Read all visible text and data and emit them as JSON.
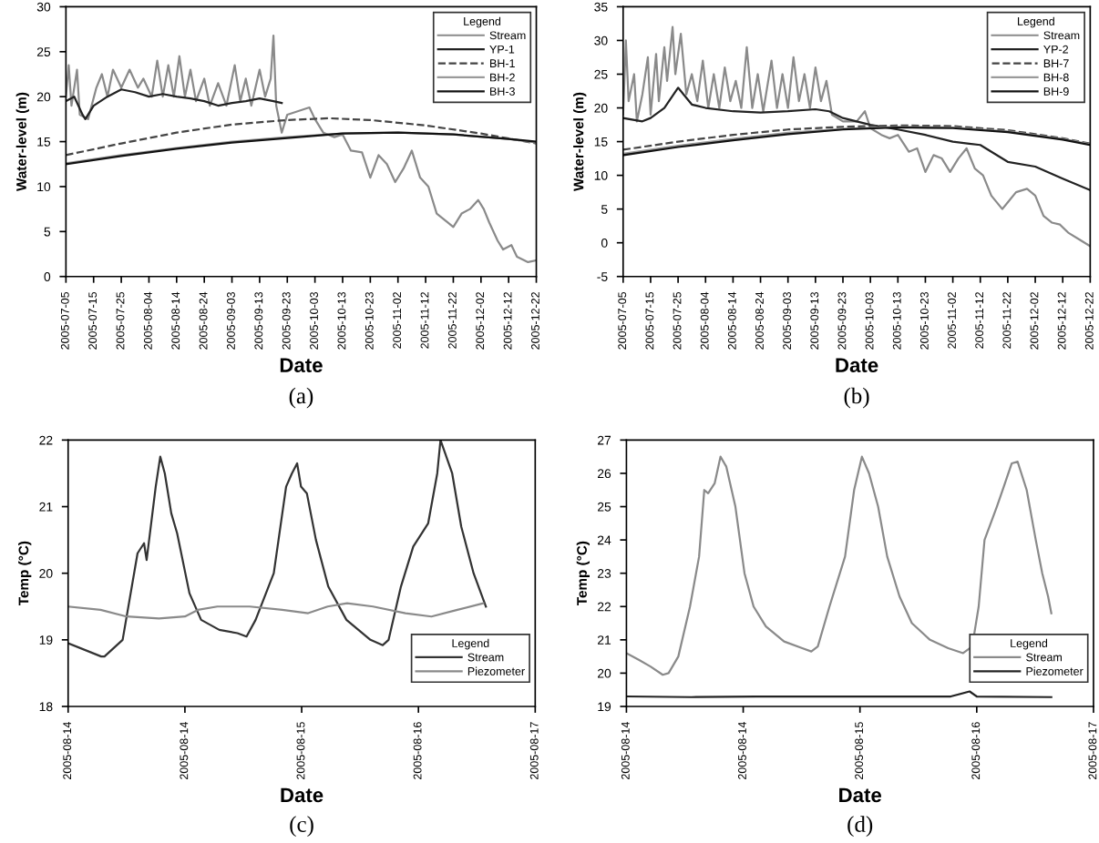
{
  "chart_data": [
    {
      "type": "line",
      "xlabel": "Date",
      "ylabel": "Water-level (m)",
      "annotations": [
        "(a)"
      ],
      "legend_title": "Legend",
      "legend": "top right",
      "line_style": "solid",
      "xlim": [
        "2005-07-05",
        "2005-12-22"
      ],
      "xticks": [
        "2005-07-05",
        "2005-07-15",
        "2005-07-25",
        "2005-08-04",
        "2005-08-14",
        "2005-08-24",
        "2005-09-03",
        "2005-09-13",
        "2005-09-23",
        "2005-10-03",
        "2005-10-13",
        "2005-10-23",
        "2005-11-02",
        "2005-11-12",
        "2005-11-22",
        "2005-12-02",
        "2005-12-12",
        "2005-12-22"
      ],
      "ylim": [
        0,
        30
      ],
      "yticks": [
        0,
        5,
        10,
        15,
        20,
        25,
        30
      ],
      "series": [
        {
          "name": "Stream",
          "color": "#8a8a8a",
          "x": [
            "2005-07-05",
            "2005-07-06",
            "2005-07-07",
            "2005-07-09",
            "2005-07-10",
            "2005-07-13",
            "2005-07-16",
            "2005-07-18",
            "2005-07-20",
            "2005-07-22",
            "2005-07-25",
            "2005-07-28",
            "2005-07-31",
            "2005-08-02",
            "2005-08-05",
            "2005-08-07",
            "2005-08-09",
            "2005-08-11",
            "2005-08-13",
            "2005-08-15",
            "2005-08-17",
            "2005-08-19",
            "2005-08-21",
            "2005-08-24",
            "2005-08-26",
            "2005-08-29",
            "2005-09-01",
            "2005-09-04",
            "2005-09-06",
            "2005-09-08",
            "2005-09-10",
            "2005-09-13",
            "2005-09-15",
            "2005-09-17",
            "2005-09-18",
            "2005-09-19",
            "2005-09-21",
            "2005-09-23",
            "2005-09-28",
            "2005-10-01",
            "2005-10-03",
            "2005-10-06",
            "2005-10-10",
            "2005-10-13",
            "2005-10-16",
            "2005-10-20",
            "2005-10-23",
            "2005-10-26",
            "2005-10-29",
            "2005-11-01",
            "2005-11-04",
            "2005-11-07",
            "2005-11-10",
            "2005-11-13",
            "2005-11-16",
            "2005-11-20",
            "2005-11-22",
            "2005-11-25",
            "2005-11-28",
            "2005-12-01",
            "2005-12-03",
            "2005-12-05",
            "2005-12-08",
            "2005-12-10",
            "2005-12-13",
            "2005-12-15",
            "2005-12-19",
            "2005-12-22"
          ],
          "values": [
            20,
            23.5,
            19,
            23,
            18,
            17.5,
            21,
            22.5,
            20,
            23,
            21,
            23,
            21,
            22,
            20,
            24,
            20,
            23.5,
            20,
            24.5,
            20,
            23,
            19.5,
            22,
            19,
            21.5,
            19,
            23.5,
            19.5,
            22,
            19,
            23,
            20,
            22,
            26.8,
            19,
            16,
            18,
            18.5,
            18.8,
            17.5,
            16,
            15.5,
            15.8,
            14,
            13.8,
            11,
            13.5,
            12.5,
            10.5,
            12,
            14,
            11,
            10,
            7,
            6,
            5.5,
            7,
            7.5,
            8.5,
            7.5,
            6,
            4,
            3,
            3.5,
            2.2,
            1.6,
            1.8
          ]
        },
        {
          "name": "YP-1",
          "color": "#222222",
          "x": [
            "2005-07-05",
            "2005-07-08",
            "2005-07-11",
            "2005-07-12",
            "2005-07-15",
            "2005-07-20",
            "2005-07-25",
            "2005-07-30",
            "2005-08-04",
            "2005-08-09",
            "2005-08-14",
            "2005-08-19",
            "2005-08-24",
            "2005-08-29",
            "2005-09-03",
            "2005-09-08",
            "2005-09-13",
            "2005-09-18",
            "2005-09-21"
          ],
          "values": [
            19.5,
            20,
            18,
            17.5,
            19,
            20,
            20.8,
            20.5,
            20,
            20.3,
            20,
            19.8,
            19.5,
            19,
            19.3,
            19.5,
            19.8,
            19.5,
            19.3
          ]
        },
        {
          "name": "BH-1",
          "color": "#444444",
          "line_style": "dashed",
          "x": [
            "2005-07-05",
            "2005-07-25",
            "2005-08-14",
            "2005-09-03",
            "2005-09-23",
            "2005-10-08",
            "2005-10-23",
            "2005-11-12",
            "2005-12-02",
            "2005-12-22"
          ],
          "values": [
            13.5,
            14.8,
            16,
            16.9,
            17.4,
            17.6,
            17.4,
            16.8,
            15.9,
            14.8
          ]
        },
        {
          "name": "BH-2",
          "color": "#9a9a9a",
          "x": [
            "2005-07-05",
            "2005-07-25",
            "2005-08-14",
            "2005-09-03",
            "2005-09-23",
            "2005-10-13",
            "2005-11-02",
            "2005-11-22",
            "2005-12-12",
            "2005-12-22"
          ],
          "values": [
            12.6,
            13.5,
            14.3,
            15,
            15.5,
            15.9,
            16,
            15.8,
            15.3,
            14.9
          ]
        },
        {
          "name": "BH-3",
          "color": "#111111",
          "x": [
            "2005-07-05",
            "2005-07-25",
            "2005-08-14",
            "2005-09-03",
            "2005-09-23",
            "2005-10-13",
            "2005-11-02",
            "2005-11-22",
            "2005-12-12",
            "2005-12-22"
          ],
          "values": [
            12.5,
            13.4,
            14.2,
            14.9,
            15.4,
            15.9,
            16,
            15.8,
            15.3,
            15
          ]
        }
      ]
    },
    {
      "type": "line",
      "xlabel": "Date",
      "ylabel": "Water-level (m)",
      "annotations": [
        "(b)"
      ],
      "legend_title": "Legend",
      "legend": "top right",
      "line_style": "solid",
      "xlim": [
        "2005-07-05",
        "2005-12-22"
      ],
      "xticks": [
        "2005-07-05",
        "2005-07-15",
        "2005-07-25",
        "2005-08-04",
        "2005-08-14",
        "2005-08-24",
        "2005-09-03",
        "2005-09-13",
        "2005-09-23",
        "2005-10-03",
        "2005-10-13",
        "2005-10-23",
        "2005-11-02",
        "2005-11-12",
        "2005-11-22",
        "2005-12-02",
        "2005-12-12",
        "2005-12-22"
      ],
      "ylim": [
        -5,
        35
      ],
      "yticks": [
        -5,
        0,
        5,
        10,
        15,
        20,
        25,
        30,
        35
      ],
      "series": [
        {
          "name": "Stream",
          "color": "#8a8a8a",
          "x": [
            "2005-07-05",
            "2005-07-06",
            "2005-07-07",
            "2005-07-09",
            "2005-07-10",
            "2005-07-12",
            "2005-07-14",
            "2005-07-15",
            "2005-07-17",
            "2005-07-18",
            "2005-07-20",
            "2005-07-21",
            "2005-07-23",
            "2005-07-24",
            "2005-07-26",
            "2005-07-28",
            "2005-07-30",
            "2005-08-01",
            "2005-08-03",
            "2005-08-05",
            "2005-08-07",
            "2005-08-09",
            "2005-08-11",
            "2005-08-13",
            "2005-08-15",
            "2005-08-17",
            "2005-08-19",
            "2005-08-21",
            "2005-08-23",
            "2005-08-25",
            "2005-08-28",
            "2005-08-30",
            "2005-09-01",
            "2005-09-03",
            "2005-09-05",
            "2005-09-07",
            "2005-09-09",
            "2005-09-11",
            "2005-09-13",
            "2005-09-15",
            "2005-09-17",
            "2005-09-19",
            "2005-09-23",
            "2005-09-28",
            "2005-10-01",
            "2005-10-03",
            "2005-10-07",
            "2005-10-10",
            "2005-10-13",
            "2005-10-17",
            "2005-10-20",
            "2005-10-23",
            "2005-10-26",
            "2005-10-29",
            "2005-11-01",
            "2005-11-04",
            "2005-11-07",
            "2005-11-10",
            "2005-11-13",
            "2005-11-16",
            "2005-11-20",
            "2005-11-22",
            "2005-11-25",
            "2005-11-29",
            "2005-12-02",
            "2005-12-05",
            "2005-12-08",
            "2005-12-11",
            "2005-12-14",
            "2005-12-18",
            "2005-12-22"
          ],
          "values": [
            19,
            30,
            21,
            25,
            18,
            22,
            27.5,
            19,
            28,
            21,
            29,
            24,
            32,
            25,
            31,
            22,
            25,
            21,
            27,
            20,
            25,
            20,
            26,
            21,
            24,
            20,
            29,
            20,
            25,
            19.5,
            27,
            20,
            25,
            20,
            27.5,
            21,
            25,
            20,
            26,
            21,
            24,
            19,
            18,
            18,
            19.5,
            17,
            16,
            15.5,
            16,
            13.5,
            14,
            10.5,
            13,
            12.5,
            10.5,
            12.5,
            14,
            11,
            10,
            7,
            5,
            6,
            7.5,
            8,
            7,
            4,
            3,
            2.7,
            1.5,
            0.5,
            -0.5
          ]
        },
        {
          "name": "YP-2",
          "color": "#222222",
          "x": [
            "2005-07-05",
            "2005-07-12",
            "2005-07-15",
            "2005-07-20",
            "2005-07-25",
            "2005-07-27",
            "2005-07-30",
            "2005-08-04",
            "2005-08-14",
            "2005-08-24",
            "2005-09-03",
            "2005-09-13",
            "2005-09-18",
            "2005-09-23",
            "2005-10-03",
            "2005-10-13",
            "2005-10-23",
            "2005-11-02",
            "2005-11-08",
            "2005-11-12",
            "2005-11-22",
            "2005-12-02",
            "2005-12-12",
            "2005-12-22"
          ],
          "values": [
            18.5,
            18,
            18.5,
            20,
            23,
            22,
            20.5,
            20,
            19.5,
            19.3,
            19.5,
            19.8,
            19.5,
            18.5,
            17.5,
            16.8,
            16,
            15,
            14.7,
            14.5,
            12,
            11.3,
            9.5,
            7.8
          ]
        },
        {
          "name": "BH-7",
          "color": "#444444",
          "line_style": "dashed",
          "x": [
            "2005-07-05",
            "2005-07-25",
            "2005-08-14",
            "2005-09-03",
            "2005-09-23",
            "2005-10-13",
            "2005-11-02",
            "2005-11-22",
            "2005-12-12",
            "2005-12-22"
          ],
          "values": [
            13.8,
            15,
            16,
            16.8,
            17.2,
            17.4,
            17.3,
            16.7,
            15.5,
            14.7
          ]
        },
        {
          "name": "BH-8",
          "color": "#9a9a9a",
          "x": [
            "2005-07-05",
            "2005-07-25",
            "2005-08-14",
            "2005-09-03",
            "2005-09-23",
            "2005-10-13",
            "2005-11-02",
            "2005-11-22",
            "2005-12-12",
            "2005-12-22"
          ],
          "values": [
            13.2,
            14.4,
            15.4,
            16.3,
            16.9,
            17.2,
            17.1,
            16.5,
            15.4,
            14.6
          ]
        },
        {
          "name": "BH-9",
          "color": "#111111",
          "x": [
            "2005-07-05",
            "2005-07-25",
            "2005-08-14",
            "2005-09-03",
            "2005-09-23",
            "2005-10-13",
            "2005-11-02",
            "2005-11-22",
            "2005-12-12",
            "2005-12-22"
          ],
          "values": [
            13,
            14.2,
            15.2,
            16.1,
            16.8,
            17.1,
            17,
            16.4,
            15.3,
            14.5
          ]
        }
      ]
    },
    {
      "type": "line",
      "xlabel": "Date",
      "ylabel": "Temp (°C)",
      "annotations": [
        "(c)"
      ],
      "legend_title": "Legend",
      "legend": "bottom right",
      "line_style": "solid",
      "xlim": [
        "2005-08-14T00:00",
        "2005-08-17T00:00"
      ],
      "xticks": [
        {
          "value": "2005-08-14T00:00",
          "label": "2005-08-14"
        },
        {
          "value": "2005-08-14T18:00",
          "label": "2005-08-14"
        },
        {
          "value": "2005-08-15T12:00",
          "label": "2005-08-15"
        },
        {
          "value": "2005-08-16T06:00",
          "label": "2005-08-16"
        },
        {
          "value": "2005-08-17T00:00",
          "label": "2005-08-17"
        }
      ],
      "ylim": [
        18,
        22
      ],
      "yticks": [
        18,
        19,
        20,
        21,
        22
      ],
      "series": [
        {
          "name": "Stream",
          "color": "#333333",
          "x": [
            "2005-08-14T00:00",
            "2005-08-14T05:06",
            "2005-08-14T05:36",
            "2005-08-14T08:24",
            "2005-08-14T10:42",
            "2005-08-14T11:42",
            "2005-08-14T12:06",
            "2005-08-14T13:30",
            "2005-08-14T14:12",
            "2005-08-14T14:54",
            "2005-08-14T15:54",
            "2005-08-14T16:48",
            "2005-08-14T18:42",
            "2005-08-14T20:30",
            "2005-08-14T23:18",
            "2005-08-15T02:06",
            "2005-08-15T03:30",
            "2005-08-15T04:54",
            "2005-08-15T07:42",
            "2005-08-15T09:36",
            "2005-08-15T10:30",
            "2005-08-15T11:18",
            "2005-08-15T11:54",
            "2005-08-15T12:48",
            "2005-08-15T14:12",
            "2005-08-15T16:06",
            "2005-08-15T18:54",
            "2005-08-15T22:36",
            "2005-08-16T00:30",
            "2005-08-16T01:24",
            "2005-08-16T03:18",
            "2005-08-16T05:12",
            "2005-08-16T07:30",
            "2005-08-16T08:54",
            "2005-08-16T09:24",
            "2005-08-16T10:18",
            "2005-08-16T11:12",
            "2005-08-16T12:36",
            "2005-08-16T14:30",
            "2005-08-16T16:24"
          ],
          "values": [
            18.95,
            18.75,
            18.75,
            19,
            20.3,
            20.45,
            20.2,
            21.3,
            21.75,
            21.5,
            20.9,
            20.6,
            19.7,
            19.3,
            19.15,
            19.1,
            19.05,
            19.3,
            20,
            21.3,
            21.5,
            21.65,
            21.3,
            21.2,
            20.5,
            19.8,
            19.3,
            19,
            18.92,
            19,
            19.8,
            20.4,
            20.75,
            21.5,
            22,
            21.75,
            21.5,
            20.7,
            20,
            19.5
          ]
        },
        {
          "name": "Piezometer",
          "color": "#8a8a8a",
          "x": [
            "2005-08-14T00:00",
            "2005-08-14T05:00",
            "2005-08-14T09:00",
            "2005-08-14T14:00",
            "2005-08-14T18:00",
            "2005-08-14T20:00",
            "2005-08-14T23:00",
            "2005-08-15T04:00",
            "2005-08-15T09:00",
            "2005-08-15T13:00",
            "2005-08-15T16:00",
            "2005-08-15T19:00",
            "2005-08-15T23:00",
            "2005-08-16T04:00",
            "2005-08-16T08:00",
            "2005-08-16T12:00",
            "2005-08-16T16:00"
          ],
          "values": [
            19.5,
            19.45,
            19.35,
            19.32,
            19.35,
            19.45,
            19.5,
            19.5,
            19.45,
            19.4,
            19.5,
            19.55,
            19.5,
            19.4,
            19.35,
            19.45,
            19.55
          ]
        }
      ]
    },
    {
      "type": "line",
      "xlabel": "Date",
      "ylabel": "Temp (°C)",
      "annotations": [
        "(d)"
      ],
      "legend_title": "Legend",
      "legend": "bottom right",
      "line_style": "solid",
      "xlim": [
        "2005-08-14T00:00",
        "2005-08-17T00:00"
      ],
      "xticks": [
        {
          "value": "2005-08-14T00:00",
          "label": "2005-08-14"
        },
        {
          "value": "2005-08-14T18:00",
          "label": "2005-08-14"
        },
        {
          "value": "2005-08-15T12:00",
          "label": "2005-08-15"
        },
        {
          "value": "2005-08-16T06:00",
          "label": "2005-08-16"
        },
        {
          "value": "2005-08-17T00:00",
          "label": "2005-08-17"
        }
      ],
      "ylim": [
        19,
        27
      ],
      "yticks": [
        19,
        20,
        21,
        22,
        23,
        24,
        25,
        26,
        27
      ],
      "series": [
        {
          "name": "Stream",
          "color": "#8a8a8a",
          "x": [
            "2005-08-14T00:00",
            "2005-08-14T01:54",
            "2005-08-14T03:42",
            "2005-08-14T05:36",
            "2005-08-14T06:30",
            "2005-08-14T08:00",
            "2005-08-14T09:48",
            "2005-08-14T11:12",
            "2005-08-14T12:00",
            "2005-08-14T12:36",
            "2005-08-14T13:36",
            "2005-08-14T14:30",
            "2005-08-14T15:24",
            "2005-08-14T16:48",
            "2005-08-14T18:12",
            "2005-08-14T19:36",
            "2005-08-14T21:30",
            "2005-08-15T00:18",
            "2005-08-15T03:06",
            "2005-08-15T04:30",
            "2005-08-15T05:30",
            "2005-08-15T07:18",
            "2005-08-15T09:42",
            "2005-08-15T11:06",
            "2005-08-15T12:18",
            "2005-08-15T13:24",
            "2005-08-15T14:48",
            "2005-08-15T16:12",
            "2005-08-15T18:06",
            "2005-08-15T20:00",
            "2005-08-15T22:48",
            "2005-08-16T01:36",
            "2005-08-16T03:54",
            "2005-08-16T05:18",
            "2005-08-16T06:18",
            "2005-08-16T07:12",
            "2005-08-16T09:06",
            "2005-08-16T10:00",
            "2005-08-16T11:24",
            "2005-08-16T12:18",
            "2005-08-16T13:42",
            "2005-08-16T15:06",
            "2005-08-16T16:06",
            "2005-08-16T17:00",
            "2005-08-16T17:30"
          ],
          "values": [
            20.6,
            20.4,
            20.2,
            19.95,
            20,
            20.5,
            22,
            23.5,
            25.5,
            25.4,
            25.7,
            26.5,
            26.2,
            25,
            23,
            22,
            21.4,
            20.95,
            20.75,
            20.65,
            20.8,
            22,
            23.5,
            25.5,
            26.5,
            26,
            25,
            23.5,
            22.3,
            21.5,
            21,
            20.75,
            20.6,
            20.8,
            22,
            24,
            25,
            25.5,
            26.3,
            26.35,
            25.5,
            24,
            23,
            22.3,
            21.8
          ]
        },
        {
          "name": "Piezometer",
          "color": "#222222",
          "x": [
            "2005-08-14T00:00",
            "2005-08-14T10:00",
            "2005-08-14T20:00",
            "2005-08-15T11:00",
            "2005-08-16T02:00",
            "2005-08-16T04:54",
            "2005-08-16T06:00",
            "2005-08-16T17:30"
          ],
          "values": [
            19.3,
            19.28,
            19.3,
            19.3,
            19.3,
            19.45,
            19.3,
            19.28
          ]
        }
      ]
    }
  ]
}
